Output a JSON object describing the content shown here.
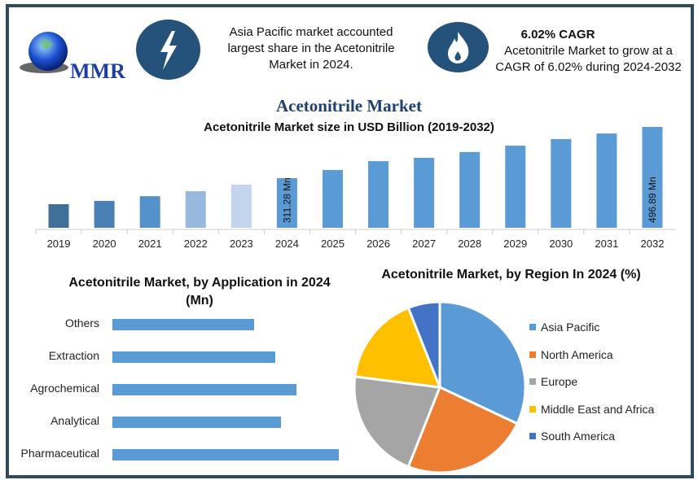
{
  "header": {
    "logo_text": "MMR",
    "left_icon": "lightning-icon",
    "left_info": "Asia Pacific market accounted largest share in the Acetonitrile Market in 2024.",
    "right_icon": "flame-icon",
    "right_heading": "6.02% CAGR",
    "right_info": "Acetonitrile Market to grow at a CAGR of 6.02% during 2024-2032",
    "icon_color": "#24527a"
  },
  "chart_data": [
    {
      "type": "bar",
      "title": "Acetonitrile Market",
      "subtitle": "Acetonitrile Market size in USD Billion (2019-2032)",
      "categories": [
        "2019",
        "2020",
        "2021",
        "2022",
        "2023",
        "2024",
        "2025",
        "2026",
        "2027",
        "2028",
        "2029",
        "2030",
        "2031",
        "2032"
      ],
      "values": [
        217,
        229,
        246,
        264,
        288,
        311.28,
        341,
        373,
        385,
        406,
        429,
        453,
        473,
        496.89
      ],
      "data_labels": {
        "2024": "311.28 Mn",
        "2032": "496.89 Mn"
      },
      "colors": [
        "#3f6f9a",
        "#4a80b5",
        "#5592cc",
        "#98b8de",
        "#c3d5ec",
        "#5b9bd5",
        "#5b9bd5",
        "#5b9bd5",
        "#5b9bd5",
        "#5b9bd5",
        "#5b9bd5",
        "#5b9bd5",
        "#5b9bd5",
        "#5b9bd5"
      ],
      "ylim": [
        130,
        500
      ]
    },
    {
      "type": "bar",
      "orientation": "horizontal",
      "title": "Acetonitrile Market, by Application in 2024 (Mn)",
      "categories": [
        "Others",
        "Extraction",
        "Agrochemical",
        "Analytical",
        "Pharmaceutical"
      ],
      "values": [
        174,
        200,
        226,
        207,
        278
      ],
      "color": "#5b9bd5"
    },
    {
      "type": "pie",
      "title": "Acetonitrile Market, by Region In 2024 (%)",
      "labels": [
        "Asia Pacific",
        "North America",
        "Europe",
        "Middle East and Africa",
        "South America"
      ],
      "values": [
        32,
        24,
        21,
        17,
        6
      ],
      "colors": [
        "#5b9bd5",
        "#ed7d31",
        "#a5a5a5",
        "#ffc000",
        "#4472c4"
      ],
      "legend": "right"
    }
  ]
}
